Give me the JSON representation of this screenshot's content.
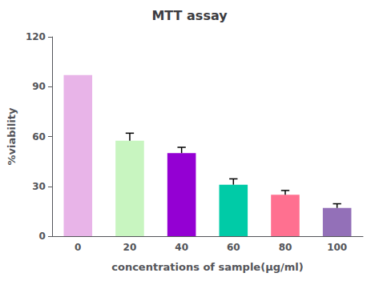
{
  "chart_data": {
    "type": "bar",
    "title": "MTT assay",
    "xlabel": "concentrations of sample(μg/ml)",
    "ylabel": "%viability",
    "categories": [
      "0",
      "20",
      "40",
      "60",
      "80",
      "100"
    ],
    "values": [
      97.0,
      57.5,
      50.0,
      31.0,
      25.0,
      17.0
    ],
    "errors": [
      0.0,
      4.5,
      3.5,
      3.5,
      2.5,
      2.5
    ],
    "colors": [
      "#E8B4E8",
      "#C8F5C0",
      "#9400D3",
      "#00CBA7",
      "#FF7090",
      "#9370B8"
    ],
    "ylim": [
      0,
      120
    ],
    "yticks": [
      0,
      30,
      60,
      90,
      120
    ],
    "grid": false
  }
}
